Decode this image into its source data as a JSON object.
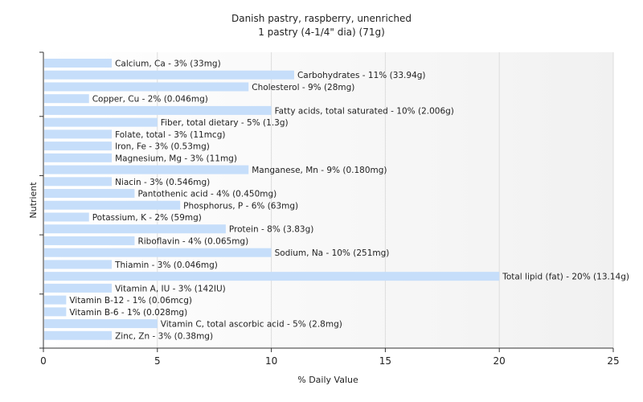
{
  "chart_data": {
    "type": "bar",
    "orientation": "horizontal",
    "title": "Danish pastry, raspberry, unenriched",
    "subtitle": "1 pastry (4-1/4\" dia) (71g)",
    "xlabel": "% Daily Value",
    "ylabel": "Nutrient",
    "xlim": [
      0,
      25
    ],
    "xticks": [
      0,
      5,
      10,
      15,
      20,
      25
    ],
    "grid": true,
    "bar_color": "#c6defa",
    "categories": [
      "Calcium, Ca",
      "Carbohydrates",
      "Cholesterol",
      "Copper, Cu",
      "Fatty acids, total saturated",
      "Fiber, total dietary",
      "Folate, total",
      "Iron, Fe",
      "Magnesium, Mg",
      "Manganese, Mn",
      "Niacin",
      "Pantothenic acid",
      "Phosphorus, P",
      "Potassium, K",
      "Protein",
      "Riboflavin",
      "Sodium, Na",
      "Thiamin",
      "Total lipid (fat)",
      "Vitamin A, IU",
      "Vitamin B-12",
      "Vitamin B-6",
      "Vitamin C, total ascorbic acid",
      "Zinc, Zn"
    ],
    "values": [
      3,
      11,
      9,
      2,
      10,
      5,
      3,
      3,
      3,
      9,
      3,
      4,
      6,
      2,
      8,
      4,
      10,
      3,
      20,
      3,
      1,
      1,
      5,
      3
    ],
    "labels": [
      "Calcium, Ca - 3% (33mg)",
      "Carbohydrates - 11% (33.94g)",
      "Cholesterol - 9% (28mg)",
      "Copper, Cu - 2% (0.046mg)",
      "Fatty acids, total saturated - 10% (2.006g)",
      "Fiber, total dietary - 5% (1.3g)",
      "Folate, total - 3% (11mcg)",
      "Iron, Fe - 3% (0.53mg)",
      "Magnesium, Mg - 3% (11mg)",
      "Manganese, Mn - 9% (0.180mg)",
      "Niacin - 3% (0.546mg)",
      "Pantothenic acid - 4% (0.450mg)",
      "Phosphorus, P - 6% (63mg)",
      "Potassium, K - 2% (59mg)",
      "Protein - 8% (3.83g)",
      "Riboflavin - 4% (0.065mg)",
      "Sodium, Na - 10% (251mg)",
      "Thiamin - 3% (0.046mg)",
      "Total lipid (fat) - 20% (13.14g)",
      "Vitamin A, IU - 3% (142IU)",
      "Vitamin B-12 - 1% (0.06mcg)",
      "Vitamin B-6 - 1% (0.028mg)",
      "Vitamin C, total ascorbic acid - 5% (2.8mg)",
      "Zinc, Zn - 3% (0.38mg)"
    ]
  }
}
